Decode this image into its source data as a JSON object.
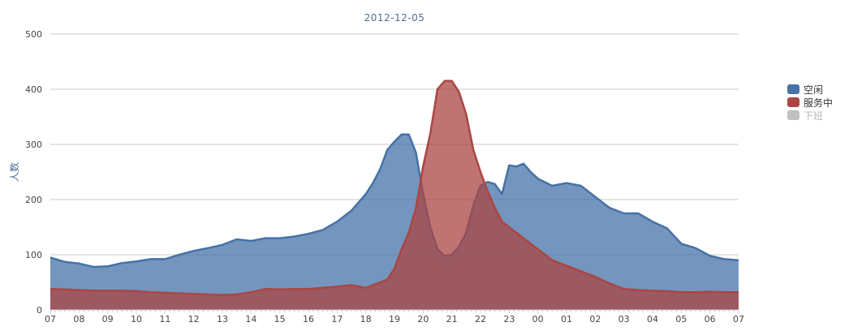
{
  "chart_data": {
    "type": "area",
    "title": "2012-12-05",
    "ylabel": "人数",
    "xlabel": "",
    "ylim": [
      0,
      500
    ],
    "yticks": [
      "0",
      "100",
      "200",
      "300",
      "400",
      "500"
    ],
    "x_tick_labels": [
      "07",
      "08",
      "09",
      "10",
      "11",
      "12",
      "13",
      "14",
      "15",
      "16",
      "17",
      "18",
      "19",
      "20",
      "21",
      "22",
      "23",
      "00",
      "01",
      "02",
      "03",
      "04",
      "05",
      "06",
      "07"
    ],
    "x_hours": [
      7,
      7.5,
      8,
      8.5,
      9,
      9.5,
      10,
      10.5,
      11,
      11.5,
      12,
      12.5,
      13,
      13.5,
      14,
      14.5,
      15,
      15.5,
      16,
      16.5,
      17,
      17.5,
      18,
      18.25,
      18.5,
      18.75,
      19,
      19.25,
      19.5,
      19.75,
      20,
      20.25,
      20.5,
      20.75,
      21,
      21.25,
      21.5,
      21.75,
      22,
      22.25,
      22.5,
      22.75,
      23,
      23.25,
      23.5,
      23.75,
      24,
      24.5,
      25,
      25.5,
      26,
      26.5,
      27,
      27.5,
      28,
      28.5,
      29,
      29.5,
      30,
      30.5,
      31
    ],
    "series": [
      {
        "name": "空闲",
        "color": "#4572a7",
        "values": [
          95,
          87,
          84,
          78,
          79,
          85,
          88,
          92,
          92,
          100,
          107,
          112,
          118,
          128,
          125,
          130,
          130,
          133,
          138,
          145,
          160,
          180,
          210,
          230,
          255,
          290,
          305,
          318,
          318,
          285,
          210,
          150,
          110,
          98,
          100,
          115,
          140,
          190,
          225,
          232,
          228,
          210,
          262,
          260,
          265,
          250,
          238,
          225,
          230,
          225,
          205,
          185,
          175,
          175,
          160,
          148,
          120,
          112,
          98,
          92,
          90
        ],
        "visible": true
      },
      {
        "name": "服务中",
        "color": "#aa4643",
        "values": [
          38,
          37,
          36,
          35,
          35,
          35,
          34,
          32,
          31,
          30,
          29,
          28,
          27,
          28,
          32,
          38,
          37,
          38,
          38,
          40,
          42,
          45,
          40,
          45,
          50,
          55,
          75,
          110,
          140,
          185,
          260,
          320,
          400,
          415,
          415,
          395,
          355,
          290,
          250,
          215,
          185,
          160,
          150,
          140,
          130,
          120,
          110,
          90,
          80,
          70,
          60,
          48,
          38,
          36,
          35,
          34,
          32,
          32,
          33,
          32,
          32
        ],
        "visible": true
      },
      {
        "name": "下班",
        "color": "#c0c0c0",
        "values": [],
        "visible": false
      }
    ],
    "legend_placement": "right",
    "grid": true
  }
}
